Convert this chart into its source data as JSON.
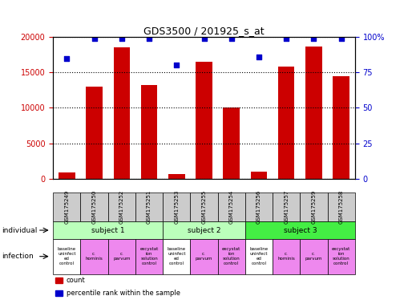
{
  "title": "GDS3500 / 201925_s_at",
  "samples": [
    "GSM175249",
    "GSM175250",
    "GSM175252",
    "GSM175251",
    "GSM175253",
    "GSM175255",
    "GSM175254",
    "GSM175256",
    "GSM175257",
    "GSM175259",
    "GSM175258"
  ],
  "counts": [
    900,
    13000,
    18500,
    13200,
    600,
    16500,
    10000,
    1000,
    15800,
    18700,
    14500
  ],
  "percentile_ranks": [
    85,
    99,
    99,
    99,
    80,
    99,
    99,
    86,
    99,
    99,
    99
  ],
  "ylim_left": [
    0,
    20000
  ],
  "ylim_right": [
    0,
    100
  ],
  "yticks_left": [
    0,
    5000,
    10000,
    15000,
    20000
  ],
  "yticks_right": [
    0,
    25,
    50,
    75,
    100
  ],
  "bar_color": "#cc0000",
  "dot_color": "#0000cc",
  "subjects": [
    {
      "label": "subject 1",
      "start": 0,
      "end": 4,
      "color": "#bbffbb"
    },
    {
      "label": "subject 2",
      "start": 4,
      "end": 7,
      "color": "#bbffbb"
    },
    {
      "label": "subject 3",
      "start": 7,
      "end": 11,
      "color": "#44ee44"
    }
  ],
  "infection_labels": [
    "baseline\nuninfect\ned\ncontrol",
    "c.\nhominis",
    "c.\nparvum",
    "excystat\nion\nsolution\ncontrol",
    "baseline\nuninfect\ned\ncontrol",
    "c.\nparvum",
    "excystat\nion\nsolution\ncontrol",
    "baseline\nuninfect\ned\ncontrol",
    "c.\nhominis",
    "c.\nparvum",
    "excystat\nion\nsolution\ncontrol"
  ],
  "infection_colors": [
    "#ffffff",
    "#ee88ee",
    "#ee88ee",
    "#ee88ee",
    "#ffffff",
    "#ee88ee",
    "#ee88ee",
    "#ffffff",
    "#ee88ee",
    "#ee88ee",
    "#ee88ee"
  ],
  "label_individual": "individual",
  "label_infection": "infection",
  "legend_count": "count",
  "legend_percentile": "percentile rank within the sample",
  "tick_color_left": "#cc0000",
  "tick_color_right": "#0000cc",
  "bg_sample_row": "#cccccc"
}
